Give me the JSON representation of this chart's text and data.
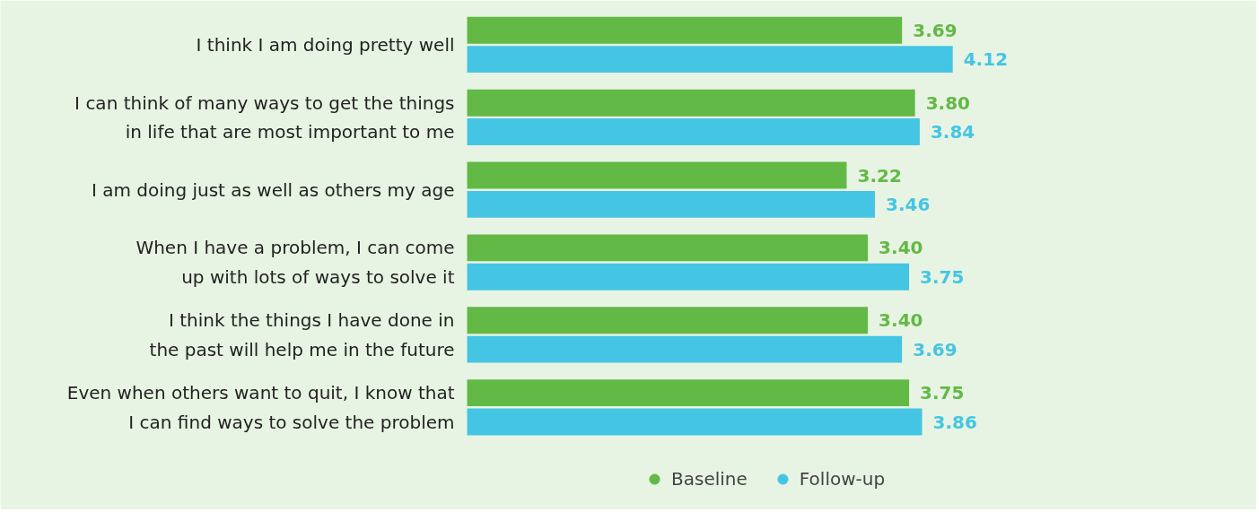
{
  "chart_data": {
    "type": "bar",
    "orientation": "horizontal",
    "categories": [
      "I think I am doing pretty well",
      "I can think of many ways to get the things\nin life that are most important to me",
      "I am doing just as well as others my age",
      "When I have a problem, I can come\nup with lots of ways to solve it",
      "I think the things I have done in\nthe past will help me in the future",
      "Even when others want to quit, I know that\nI can find ways to solve the problem"
    ],
    "series": [
      {
        "name": "Baseline",
        "color": "#62b946",
        "values": [
          3.69,
          3.8,
          3.22,
          3.4,
          3.4,
          3.75
        ],
        "value_labels": [
          "3.69",
          "3.80",
          "3.22",
          "3.40",
          "3.40",
          "3.75"
        ]
      },
      {
        "name": "Follow-up",
        "color": "#45c5e4",
        "values": [
          4.12,
          3.84,
          3.46,
          3.75,
          3.69,
          3.86
        ],
        "value_labels": [
          "4.12",
          "3.84",
          "3.46",
          "3.75",
          "3.69",
          "3.86"
        ]
      }
    ],
    "legend": "bottom",
    "grid": false,
    "marker": "circle",
    "tick_labels": "y"
  }
}
